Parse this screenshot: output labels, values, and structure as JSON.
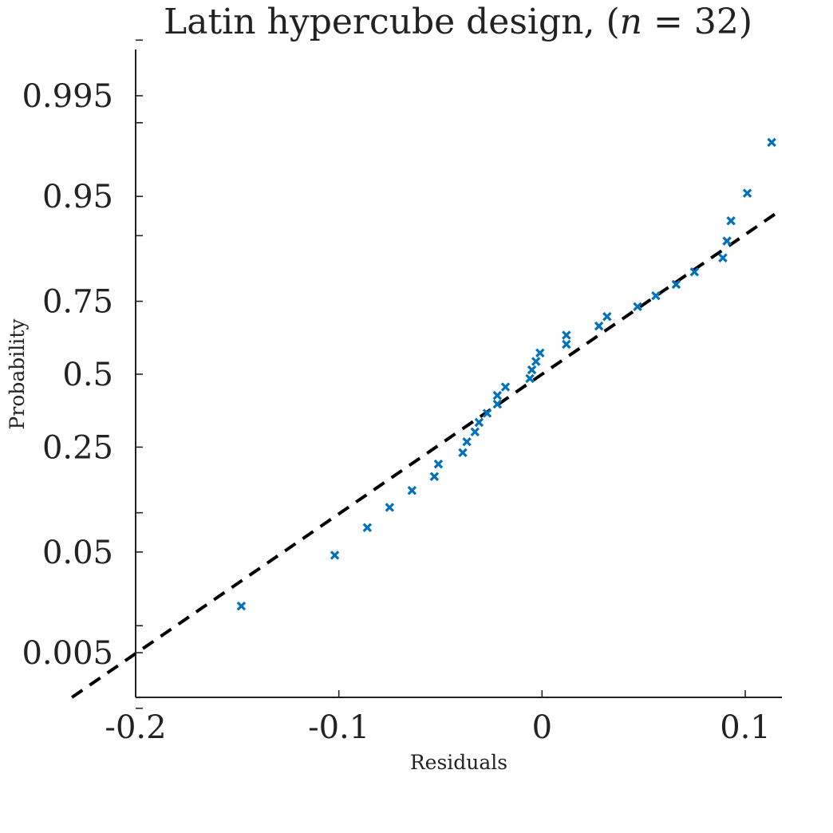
{
  "chart_data": {
    "type": "scatter",
    "title": "Latin hypercube design, (n = 32)",
    "title_parts": {
      "prefix": "Latin hypercube design, (",
      "var": "n",
      "suffix": " = 32)"
    },
    "xlabel": "Residuals",
    "ylabel": "Probability",
    "xlim": [
      -0.2,
      0.118
    ],
    "ylim_probability": [
      0.001,
      0.9995
    ],
    "y_scale": "normal-probability",
    "x_ticks": [
      {
        "value": -0.2,
        "label": "-0.2"
      },
      {
        "value": -0.1,
        "label": "-0.1"
      },
      {
        "value": 0,
        "label": "0"
      },
      {
        "value": 0.1,
        "label": "0.1"
      }
    ],
    "y_ticks": [
      {
        "value": 0.005,
        "label": "0.005"
      },
      {
        "value": 0.05,
        "label": "0.05"
      },
      {
        "value": 0.25,
        "label": "0.25"
      },
      {
        "value": 0.5,
        "label": "0.5"
      },
      {
        "value": 0.75,
        "label": "0.75"
      },
      {
        "value": 0.95,
        "label": "0.95"
      },
      {
        "value": 0.995,
        "label": "0.995"
      }
    ],
    "y_minor_ticks": [
      0.001,
      0.01,
      0.1,
      0.9,
      0.99,
      0.999
    ],
    "marker": "x",
    "marker_color": "#0072bd",
    "reference_line": {
      "style": "dashed",
      "color": "#000000",
      "mean": 0.0,
      "sd": 0.0774
    },
    "series": [
      {
        "points": [
          {
            "x": -0.148,
            "p": 0.016
          },
          {
            "x": -0.102,
            "p": 0.047
          },
          {
            "x": -0.086,
            "p": 0.078
          },
          {
            "x": -0.075,
            "p": 0.109
          },
          {
            "x": -0.064,
            "p": 0.141
          },
          {
            "x": -0.053,
            "p": 0.172
          },
          {
            "x": -0.051,
            "p": 0.203
          },
          {
            "x": -0.039,
            "p": 0.234
          },
          {
            "x": -0.037,
            "p": 0.266
          },
          {
            "x": -0.033,
            "p": 0.297
          },
          {
            "x": -0.031,
            "p": 0.328
          },
          {
            "x": -0.027,
            "p": 0.359
          },
          {
            "x": -0.022,
            "p": 0.391
          },
          {
            "x": -0.022,
            "p": 0.422
          },
          {
            "x": -0.018,
            "p": 0.453
          },
          {
            "x": -0.006,
            "p": 0.484
          },
          {
            "x": -0.005,
            "p": 0.516
          },
          {
            "x": -0.003,
            "p": 0.547
          },
          {
            "x": -0.001,
            "p": 0.578
          },
          {
            "x": 0.012,
            "p": 0.609
          },
          {
            "x": 0.012,
            "p": 0.641
          },
          {
            "x": 0.028,
            "p": 0.672
          },
          {
            "x": 0.032,
            "p": 0.703
          },
          {
            "x": 0.047,
            "p": 0.734
          },
          {
            "x": 0.056,
            "p": 0.766
          },
          {
            "x": 0.066,
            "p": 0.797
          },
          {
            "x": 0.075,
            "p": 0.828
          },
          {
            "x": 0.089,
            "p": 0.859
          },
          {
            "x": 0.091,
            "p": 0.891
          },
          {
            "x": 0.093,
            "p": 0.922
          },
          {
            "x": 0.101,
            "p": 0.953
          },
          {
            "x": 0.113,
            "p": 0.984
          }
        ]
      }
    ]
  }
}
